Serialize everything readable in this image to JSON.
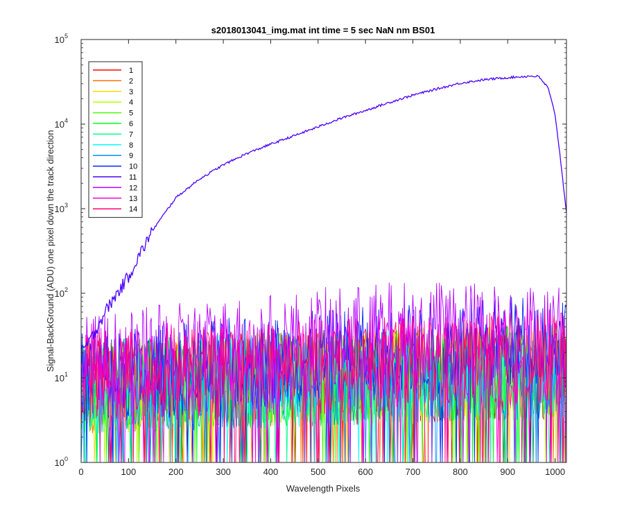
{
  "chart_data": {
    "type": "line",
    "title": "s2018013041_img.mat int time = 5 sec  NaN nm BS01",
    "xlabel": "Wavelength Pixels",
    "ylabel": "Signal-BackGround (ADU) one pixel down the track direction",
    "xlim": [
      0,
      1024
    ],
    "ylim": [
      1,
      100000
    ],
    "yscale": "log",
    "grid": false,
    "legend_location": "top-left",
    "x_ticks": [
      "0",
      "100",
      "200",
      "300",
      "400",
      "500",
      "600",
      "700",
      "800",
      "900",
      "1000"
    ],
    "y_ticks": [
      {
        "base": "10",
        "exp": "0"
      },
      {
        "base": "10",
        "exp": "1"
      },
      {
        "base": "10",
        "exp": "2"
      },
      {
        "base": "10",
        "exp": "3"
      },
      {
        "base": "10",
        "exp": "4"
      },
      {
        "base": "10",
        "exp": "5"
      }
    ],
    "series": [
      {
        "name": "1",
        "color": "#ff0000",
        "profile": "noise",
        "x": [
          0,
          1024
        ],
        "y": [
          8,
          12
        ]
      },
      {
        "name": "2",
        "color": "#ff6e00",
        "profile": "noise",
        "x": [
          0,
          1024
        ],
        "y": [
          8,
          12
        ]
      },
      {
        "name": "3",
        "color": "#ffdb00",
        "profile": "noise",
        "x": [
          0,
          1024
        ],
        "y": [
          8,
          12
        ]
      },
      {
        "name": "4",
        "color": "#b6ff00",
        "profile": "noise",
        "x": [
          0,
          1024
        ],
        "y": [
          8,
          12
        ]
      },
      {
        "name": "5",
        "color": "#49ff00",
        "profile": "noise",
        "x": [
          0,
          1024
        ],
        "y": [
          8,
          12
        ]
      },
      {
        "name": "6",
        "color": "#00ff24",
        "profile": "noise",
        "x": [
          0,
          1024
        ],
        "y": [
          8,
          12
        ]
      },
      {
        "name": "7",
        "color": "#00ff92",
        "profile": "noise",
        "x": [
          0,
          1024
        ],
        "y": [
          8,
          12
        ]
      },
      {
        "name": "8",
        "color": "#00ffff",
        "profile": "noise",
        "x": [
          0,
          1024
        ],
        "y": [
          8,
          12
        ]
      },
      {
        "name": "9",
        "color": "#0092ff",
        "profile": "noise",
        "x": [
          0,
          1024
        ],
        "y": [
          8,
          12
        ]
      },
      {
        "name": "10",
        "color": "#0024ff",
        "profile": "noise",
        "x": [
          0,
          1024
        ],
        "y": [
          10,
          30
        ]
      },
      {
        "name": "11",
        "color": "#4900ff",
        "profile": "signal",
        "x": [
          0,
          20,
          50,
          100,
          150,
          200,
          250,
          300,
          350,
          400,
          450,
          500,
          550,
          600,
          650,
          700,
          750,
          800,
          850,
          900,
          950,
          965,
          985,
          1000,
          1010,
          1024
        ],
        "y": [
          20,
          28,
          60,
          160,
          550,
          1350,
          2250,
          3300,
          4500,
          5800,
          7300,
          9300,
          11800,
          14500,
          18000,
          22000,
          26000,
          30500,
          33500,
          35500,
          37000,
          36500,
          27000,
          13000,
          4500,
          900
        ]
      },
      {
        "name": "12",
        "color": "#b600ff",
        "profile": "noise",
        "x": [
          0,
          300,
          700,
          1024
        ],
        "y": [
          15,
          25,
          40,
          35
        ]
      },
      {
        "name": "13",
        "color": "#ff00db",
        "profile": "noise",
        "x": [
          0,
          1024
        ],
        "y": [
          12,
          18
        ]
      },
      {
        "name": "14",
        "color": "#ff006e",
        "profile": "noise",
        "x": [
          0,
          1024
        ],
        "y": [
          10,
          18
        ]
      }
    ]
  }
}
